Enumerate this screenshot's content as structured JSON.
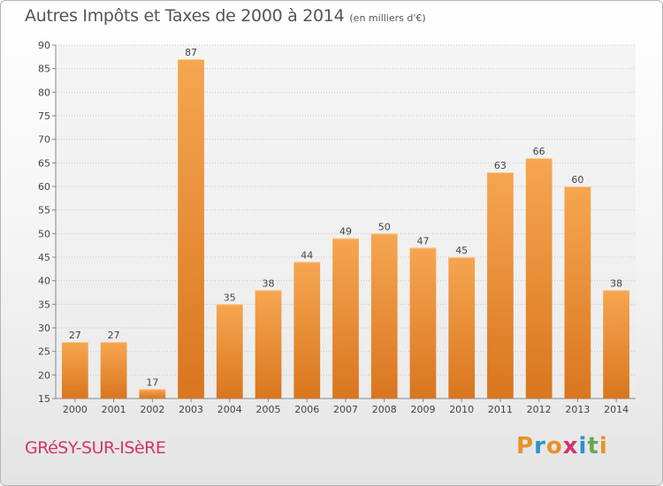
{
  "title": "Autres Impôts et Taxes de 2000 à 2014",
  "unit": "(en milliers d'€)",
  "location": "GRéSY-SUR-ISèRE",
  "brand": {
    "letters": [
      "P",
      "r",
      "o",
      "x",
      "i",
      "t",
      "i"
    ],
    "colors": [
      "#e8912b",
      "#2e8fd0",
      "#e8912b",
      "#d2356f",
      "#2e8fd0",
      "#6aa84f",
      "#e8912b"
    ]
  },
  "colors": {
    "bar_light": "#f6a650",
    "bar_dark": "#d9761f",
    "location": "#d2356f"
  },
  "chart_data": {
    "type": "bar",
    "categories": [
      "2000",
      "2001",
      "2002",
      "2003",
      "2004",
      "2005",
      "2006",
      "2007",
      "2008",
      "2009",
      "2010",
      "2011",
      "2012",
      "2013",
      "2014"
    ],
    "values": [
      27,
      27,
      17,
      87,
      35,
      38,
      44,
      49,
      50,
      47,
      45,
      63,
      66,
      60,
      38
    ],
    "ylim": [
      15,
      90
    ],
    "yticks": [
      15,
      20,
      25,
      30,
      35,
      40,
      45,
      50,
      55,
      60,
      65,
      70,
      75,
      80,
      85,
      90
    ],
    "grid": "horizontal dotted",
    "data_labels": true
  }
}
